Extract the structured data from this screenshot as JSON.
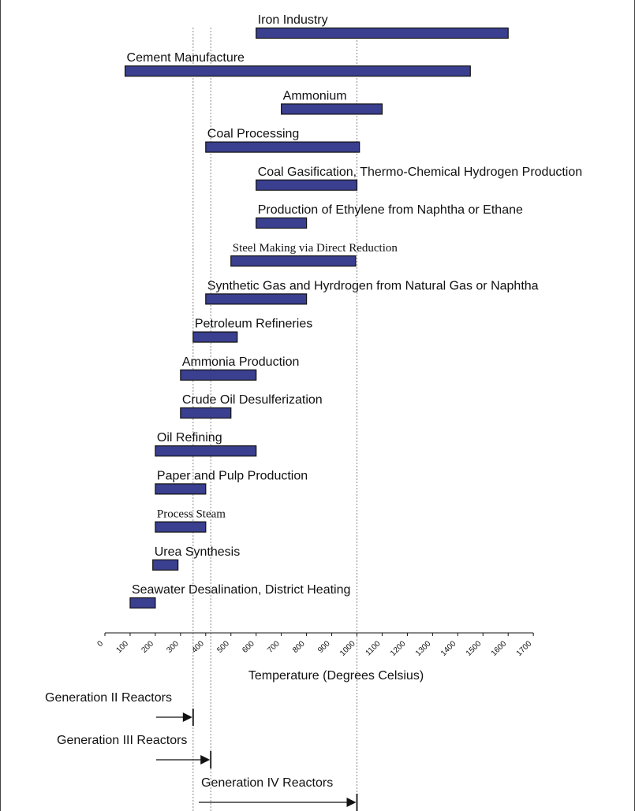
{
  "chart_data": {
    "type": "bar",
    "orientation": "horizontal-range",
    "xlabel": "Temperature (Degrees Celsius)",
    "xlim": [
      0,
      1700
    ],
    "xticks": [
      "0",
      "100",
      "200",
      "300",
      "400",
      "500",
      "600",
      "700",
      "800",
      "900",
      "1000",
      "1100",
      "1200",
      "1300",
      "1400",
      "1500",
      "1600",
      "1700"
    ],
    "bar_color": "#3a3f8f",
    "reference_lines": [
      350,
      420,
      1000
    ],
    "ranges": [
      {
        "label": "Iron Industry",
        "start": 600,
        "end": 1600,
        "font": "sans"
      },
      {
        "label": "Cement Manufacture",
        "start": 80,
        "end": 1450,
        "font": "sans"
      },
      {
        "label": "Ammonium",
        "start": 700,
        "end": 1100,
        "font": "sans"
      },
      {
        "label": "Coal Processing",
        "start": 400,
        "end": 1010,
        "font": "sans"
      },
      {
        "label": "Coal Gasification, Thermo-Chemical Hydrogen Production",
        "start": 600,
        "end": 1000,
        "font": "sans"
      },
      {
        "label": "Production of Ethylene from Naphtha or Ethane",
        "start": 600,
        "end": 800,
        "font": "sans"
      },
      {
        "label": "Steel Making via Direct Reduction",
        "start": 500,
        "end": 995,
        "font": "serif"
      },
      {
        "label": "Synthetic Gas and Hyrdrogen from Natural Gas or Naphtha",
        "start": 400,
        "end": 800,
        "font": "sans"
      },
      {
        "label": "Petroleum Refineries",
        "start": 350,
        "end": 525,
        "font": "sans"
      },
      {
        "label": "Ammonia Production",
        "start": 300,
        "end": 600,
        "font": "sans"
      },
      {
        "label": "Crude Oil Desulferization",
        "start": 300,
        "end": 500,
        "font": "sans"
      },
      {
        "label": "Oil Refining",
        "start": 200,
        "end": 600,
        "font": "sans"
      },
      {
        "label": "Paper and Pulp Production",
        "start": 200,
        "end": 400,
        "font": "sans"
      },
      {
        "label": "Process Steam",
        "start": 200,
        "end": 400,
        "font": "serif"
      },
      {
        "label": "Urea Synthesis",
        "start": 190,
        "end": 290,
        "font": "sans"
      },
      {
        "label": "Seawater Desalination, District Heating",
        "start": 100,
        "end": 200,
        "font": "sans"
      }
    ],
    "reactors": [
      {
        "label": "Generation II Reactors",
        "max_temp": 350
      },
      {
        "label": "Generation III Reactors",
        "max_temp": 420
      },
      {
        "label": "Generation IV Reactors",
        "max_temp": 1000
      }
    ]
  }
}
